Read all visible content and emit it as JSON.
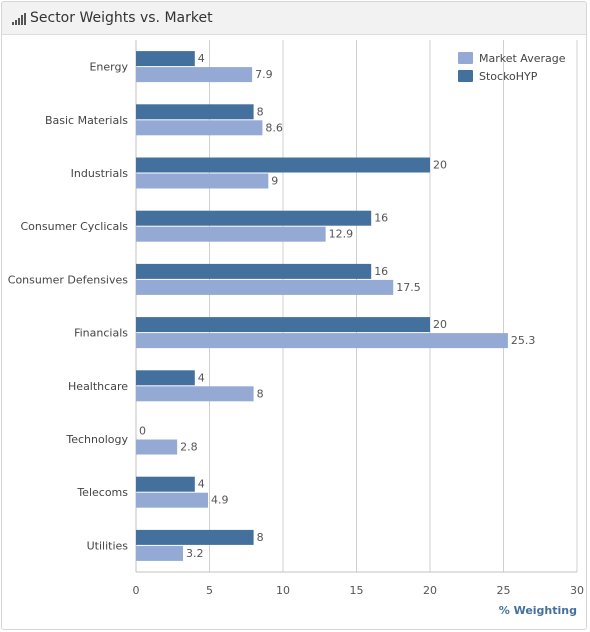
{
  "panel": {
    "title": "Sector Weights vs. Market",
    "icon": "bar-chart-icon"
  },
  "chart_data": {
    "type": "bar",
    "orientation": "horizontal",
    "categories": [
      "Energy",
      "Basic Materials",
      "Industrials",
      "Consumer Cyclicals",
      "Consumer Defensives",
      "Financials",
      "Healthcare",
      "Technology",
      "Telecoms",
      "Utilities"
    ],
    "series": [
      {
        "name": "Market Average",
        "color": "#94aad4",
        "values": [
          7.9,
          8.6,
          9,
          12.9,
          17.5,
          25.3,
          8,
          2.8,
          4.9,
          3.2
        ]
      },
      {
        "name": "StockoHYP",
        "color": "#44709e",
        "values": [
          4,
          8,
          20,
          16,
          16,
          20,
          4,
          0,
          4,
          8
        ]
      }
    ],
    "xlabel": "% Weighting",
    "xlim": [
      0,
      30
    ],
    "xticks": [
      0,
      5,
      10,
      15,
      20,
      25,
      30
    ],
    "grid": true,
    "legend_position": "top-right"
  }
}
